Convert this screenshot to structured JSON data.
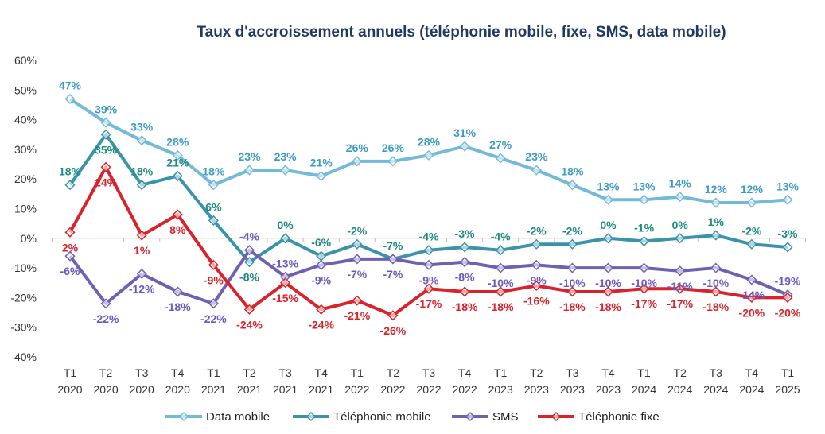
{
  "chart_data": {
    "type": "line",
    "title": "Taux d'accroissement annuels (téléphonie mobile, fixe, SMS, data mobile)",
    "categories": [
      [
        "T1",
        "2020"
      ],
      [
        "T2",
        "2020"
      ],
      [
        "T3",
        "2020"
      ],
      [
        "T4",
        "2020"
      ],
      [
        "T1",
        "2021"
      ],
      [
        "T2",
        "2021"
      ],
      [
        "T3",
        "2021"
      ],
      [
        "T4",
        "2021"
      ],
      [
        "T1",
        "2022"
      ],
      [
        "T2",
        "2022"
      ],
      [
        "T3",
        "2022"
      ],
      [
        "T4",
        "2022"
      ],
      [
        "T1",
        "2023"
      ],
      [
        "T2",
        "2023"
      ],
      [
        "T3",
        "2023"
      ],
      [
        "T4",
        "2023"
      ],
      [
        "T1",
        "2024"
      ],
      [
        "T2",
        "2024"
      ],
      [
        "T3",
        "2024"
      ],
      [
        "T4",
        "2024"
      ],
      [
        "T1",
        "2025"
      ]
    ],
    "ylim": [
      -40,
      60
    ],
    "yticks": [
      "60%",
      "50%",
      "40%",
      "30%",
      "20%",
      "10%",
      "0%",
      "-10%",
      "-20%",
      "-30%",
      "-40%"
    ],
    "legend_position": "bottom",
    "grid": false,
    "series": [
      {
        "name": "Data mobile",
        "color": "#73b9d8",
        "label_color": "#3d9ac2",
        "label_pos": "above",
        "values": [
          47,
          39,
          33,
          28,
          18,
          23,
          23,
          21,
          26,
          26,
          28,
          31,
          27,
          23,
          18,
          13,
          13,
          14,
          12,
          12,
          13
        ]
      },
      {
        "name": "Téléphonie mobile",
        "color": "#3a93aa",
        "label_color": "#1d8a7e",
        "label_pos": "above",
        "values": [
          18,
          35,
          18,
          21,
          6,
          -8,
          0,
          -6,
          -2,
          -7,
          -4,
          -3,
          -4,
          -2,
          -2,
          0,
          -1,
          0,
          1,
          -2,
          -3
        ]
      },
      {
        "name": "SMS",
        "color": "#7060b4",
        "label_color": "#6a5ac0",
        "label_pos": "below",
        "values": [
          -6,
          -22,
          -12,
          -18,
          -22,
          -4,
          -13,
          -9,
          -7,
          -7,
          -9,
          -8,
          -10,
          -9,
          -10,
          -10,
          -10,
          -11,
          -10,
          -14,
          -19
        ]
      },
      {
        "name": "Téléphonie fixe",
        "color": "#d9232b",
        "label_color": "#d9232b",
        "label_pos": "below",
        "values": [
          2,
          24,
          1,
          8,
          -9,
          -24,
          -15,
          -24,
          -21,
          -26,
          -17,
          -18,
          -18,
          -16,
          -18,
          -18,
          -17,
          -17,
          -18,
          -20,
          -20
        ]
      }
    ]
  }
}
